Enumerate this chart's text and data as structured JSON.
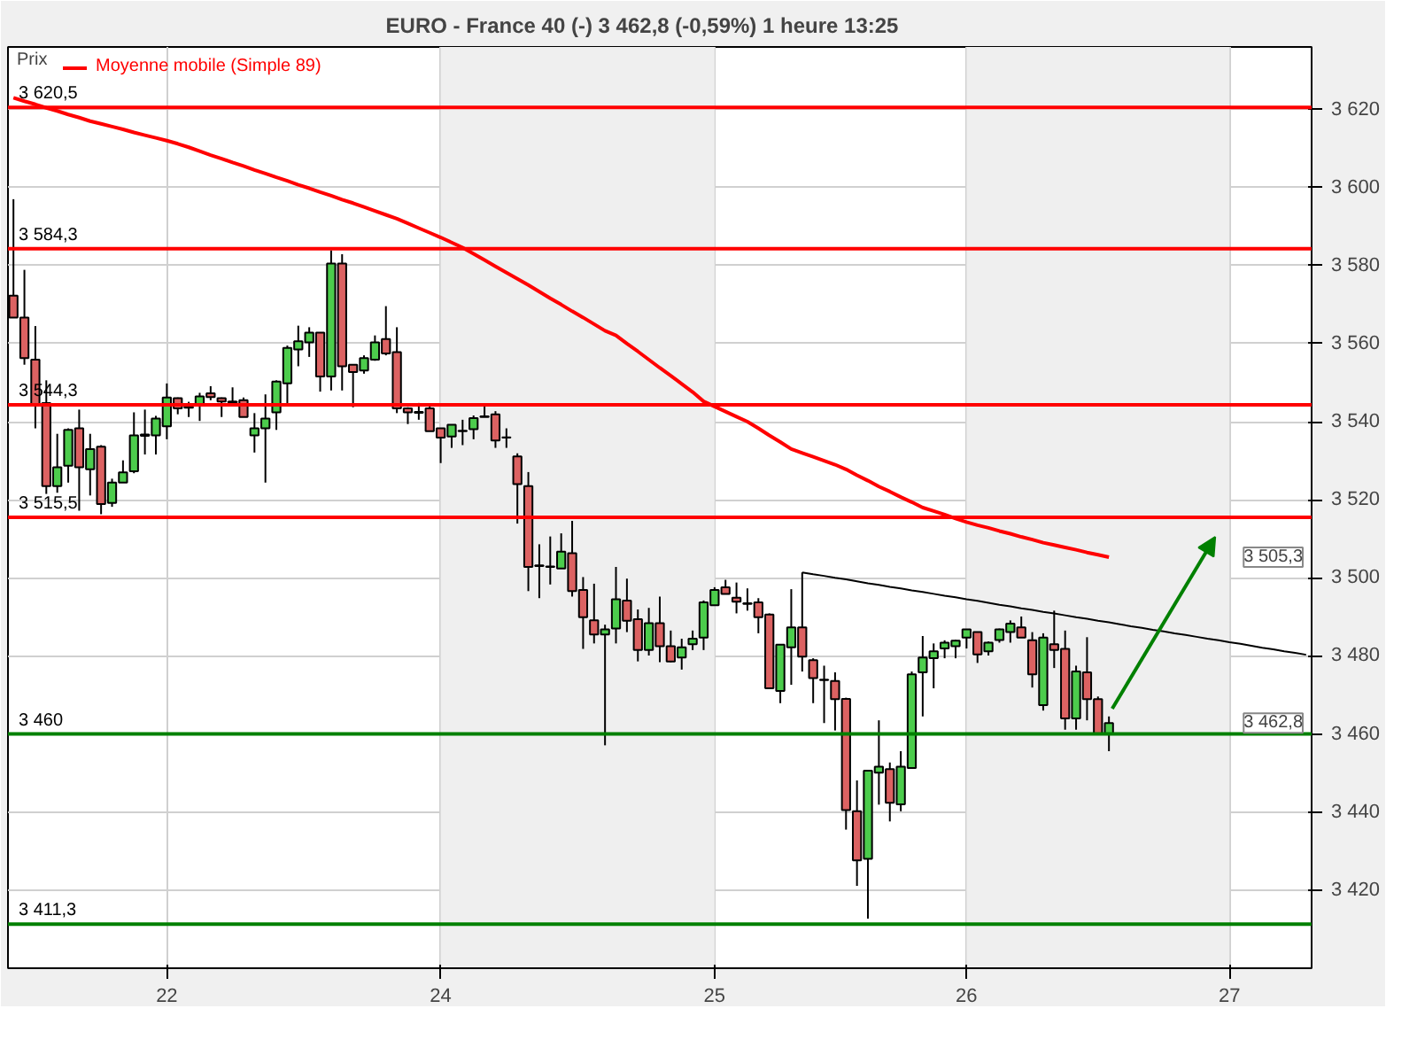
{
  "chart_data": {
    "type": "candlestick",
    "title": "EURO - France 40 (-)   3 462,8 (-0,59%)    1 heure  13:25",
    "categories": [
      null,
      null,
      null,
      null,
      null,
      null,
      null,
      null,
      null,
      null,
      null,
      null,
      null,
      null,
      "22",
      null,
      null,
      null,
      null,
      null,
      null,
      null,
      null,
      null,
      null,
      null,
      null,
      null,
      null,
      null,
      null,
      null,
      null,
      null,
      null,
      null,
      null,
      null,
      null,
      "24",
      null,
      null,
      null,
      null,
      null,
      null,
      null,
      null,
      null,
      null,
      null,
      null,
      null,
      null,
      null,
      null,
      null,
      null,
      null,
      null,
      null,
      null,
      null,
      null,
      "25",
      null,
      null,
      null,
      null,
      null,
      null,
      null,
      null,
      null,
      null,
      null,
      null,
      null,
      null,
      null,
      null,
      null,
      null,
      null,
      null,
      null,
      null,
      "26",
      null,
      null,
      null,
      null,
      null,
      null,
      null,
      null,
      null,
      null,
      null,
      null,
      null,
      null,
      null,
      null,
      null,
      null,
      null,
      null,
      null,
      null,
      null,
      "27",
      null,
      null,
      null,
      null,
      null,
      null,
      null
    ],
    "ylabel": "Prix",
    "ohlc": [
      [
        3572.3,
        3597.0,
        3566.7,
        3566.7
      ],
      [
        3566.7,
        3578.9,
        3554.6,
        3556.3
      ],
      [
        3555.9,
        3564.5,
        3538.3,
        3544.2
      ],
      [
        3544.8,
        3550.6,
        3521.5,
        3523.5
      ],
      [
        3523.5,
        3536.9,
        3521.8,
        3528.3
      ],
      [
        3528.7,
        3538.3,
        3524.4,
        3537.9
      ],
      [
        3538.3,
        3543.1,
        3517.2,
        3528.3
      ],
      [
        3527.8,
        3536.9,
        3521.1,
        3533.0
      ],
      [
        3533.6,
        3534.0,
        3516.3,
        3518.9
      ],
      [
        3519.2,
        3525.4,
        3518.2,
        3524.4
      ],
      [
        3524.4,
        3530.1,
        3524.4,
        3527.0
      ],
      [
        3527.3,
        3542.4,
        3526.8,
        3536.5
      ],
      [
        3536.4,
        3543.1,
        3531.6,
        3536.7
      ],
      [
        3536.5,
        3541.5,
        3531.6,
        3540.8
      ],
      [
        3538.8,
        3549.8,
        3535.5,
        3546.2
      ],
      [
        3546.0,
        3546.2,
        3541.9,
        3543.4
      ],
      [
        3543.8,
        3545.1,
        3541.2,
        3543.6
      ],
      [
        3544.1,
        3547.4,
        3540.2,
        3546.5
      ],
      [
        3547.3,
        3549.1,
        3545.5,
        3546.3
      ],
      [
        3546.0,
        3546.2,
        3541.2,
        3545.2
      ],
      [
        3545.2,
        3548.8,
        3544.1,
        3544.9
      ],
      [
        3545.5,
        3546.2,
        3541.2,
        3541.2
      ],
      [
        3536.5,
        3542.2,
        3532.1,
        3538.3
      ],
      [
        3538.3,
        3547.0,
        3524.4,
        3540.8
      ],
      [
        3542.4,
        3550.6,
        3537.9,
        3550.3
      ],
      [
        3549.8,
        3559.5,
        3544.1,
        3558.9
      ],
      [
        3558.5,
        3564.6,
        3554.2,
        3560.6
      ],
      [
        3560.3,
        3564.2,
        3556.6,
        3562.8
      ],
      [
        3562.8,
        3562.8,
        3547.7,
        3551.6
      ],
      [
        3551.6,
        3583.9,
        3548.0,
        3580.5
      ],
      [
        3580.5,
        3582.9,
        3548.0,
        3554.2
      ],
      [
        3554.6,
        3554.6,
        3543.7,
        3552.7
      ],
      [
        3553.1,
        3557.0,
        3552.3,
        3556.3
      ],
      [
        3555.9,
        3562.1,
        3555.6,
        3560.3
      ],
      [
        3561.2,
        3569.6,
        3557.0,
        3557.5
      ],
      [
        3557.8,
        3564.2,
        3542.2,
        3543.4
      ],
      [
        3543.4,
        3543.7,
        3539.4,
        3542.4
      ],
      [
        3542.5,
        3544.8,
        3540.5,
        3542.3
      ],
      [
        3543.4,
        3544.0,
        3537.6,
        3537.6
      ],
      [
        3538.3,
        3538.3,
        3529.4,
        3535.9
      ],
      [
        3536.2,
        3539.3,
        3533.3,
        3539.2
      ],
      [
        3537.6,
        3540.5,
        3534.0,
        3537.7
      ],
      [
        3538.1,
        3541.6,
        3535.5,
        3540.9
      ],
      [
        3541.2,
        3544.1,
        3541.2,
        3541.4
      ],
      [
        3541.9,
        3542.7,
        3533.3,
        3535.2
      ],
      [
        3536.0,
        3538.3,
        3533.3,
        3535.9
      ],
      [
        3531.1,
        3531.9,
        3513.9,
        3524.0
      ],
      [
        3523.5,
        3527.1,
        3496.6,
        3502.8
      ],
      [
        3503.2,
        3508.6,
        3494.8,
        3503.0
      ],
      [
        3502.9,
        3510.6,
        3498.3,
        3502.8
      ],
      [
        3502.4,
        3511.4,
        3502.4,
        3506.7
      ],
      [
        3506.3,
        3514.6,
        3495.2,
        3496.6
      ],
      [
        3496.9,
        3500.2,
        3481.8,
        3489.9
      ],
      [
        3489.1,
        3498.5,
        3483.2,
        3485.5
      ],
      [
        3485.5,
        3488.0,
        3457.1,
        3486.8
      ],
      [
        3487.0,
        3502.8,
        3483.2,
        3494.5
      ],
      [
        3494.2,
        3499.8,
        3486.1,
        3489.0
      ],
      [
        3489.4,
        3491.9,
        3478.6,
        3481.5
      ],
      [
        3481.5,
        3492.3,
        3480.1,
        3488.4
      ],
      [
        3488.4,
        3495.2,
        3478.4,
        3482.5
      ],
      [
        3482.5,
        3486.5,
        3478.4,
        3478.6
      ],
      [
        3479.6,
        3484.4,
        3476.5,
        3482.2
      ],
      [
        3483.0,
        3486.5,
        3481.5,
        3484.4
      ],
      [
        3484.7,
        3494.2,
        3481.5,
        3493.7
      ],
      [
        3493.0,
        3497.6,
        3493.0,
        3496.9
      ],
      [
        3497.6,
        3499.5,
        3495.9,
        3495.9
      ],
      [
        3494.9,
        3498.8,
        3490.9,
        3493.9
      ],
      [
        3493.5,
        3497.3,
        3491.6,
        3493.3
      ],
      [
        3493.7,
        3494.8,
        3485.8,
        3489.9
      ],
      [
        3490.6,
        3490.9,
        3471.7,
        3471.7
      ],
      [
        3471.0,
        3482.9,
        3467.9,
        3482.9
      ],
      [
        3482.2,
        3497.1,
        3472.6,
        3487.3
      ],
      [
        3487.3,
        3501.4,
        3476.0,
        3479.8
      ],
      [
        3478.9,
        3479.4,
        3467.9,
        3474.3
      ],
      [
        3473.9,
        3477.5,
        3462.8,
        3473.8
      ],
      [
        3473.6,
        3475.8,
        3460.9,
        3468.9
      ],
      [
        3469.0,
        3469.3,
        3435.5,
        3440.5
      ],
      [
        3440.2,
        3448.1,
        3421.1,
        3427.6
      ],
      [
        3428.0,
        3450.6,
        3412.7,
        3450.6
      ],
      [
        3450.1,
        3463.5,
        3441.9,
        3451.6
      ],
      [
        3451.0,
        3452.7,
        3437.6,
        3442.4
      ],
      [
        3442.0,
        3455.6,
        3440.2,
        3451.6
      ],
      [
        3451.3,
        3476.0,
        3451.3,
        3475.3
      ],
      [
        3475.8,
        3485.1,
        3464.5,
        3479.6
      ],
      [
        3479.4,
        3483.2,
        3471.7,
        3481.2
      ],
      [
        3481.9,
        3484.0,
        3479.4,
        3483.4
      ],
      [
        3482.5,
        3484.1,
        3479.4,
        3483.9
      ],
      [
        3484.7,
        3486.8,
        3481.9,
        3486.8
      ],
      [
        3486.1,
        3486.1,
        3478.2,
        3480.4
      ],
      [
        3481.2,
        3483.7,
        3480.1,
        3483.4
      ],
      [
        3484.1,
        3487.0,
        3483.4,
        3486.8
      ],
      [
        3486.1,
        3489.1,
        3483.4,
        3488.3
      ],
      [
        3487.3,
        3490.1,
        3484.7,
        3484.7
      ],
      [
        3484.0,
        3486.1,
        3471.9,
        3475.3
      ],
      [
        3467.4,
        3485.8,
        3466.0,
        3484.7
      ],
      [
        3483.0,
        3491.6,
        3476.9,
        3481.5
      ],
      [
        3481.8,
        3486.5,
        3461.1,
        3464.0
      ],
      [
        3464.0,
        3477.5,
        3461.1,
        3476.0
      ],
      [
        3475.8,
        3484.8,
        3463.5,
        3468.9
      ],
      [
        3468.9,
        3469.6,
        3460.0,
        3460.0
      ],
      [
        3460.0,
        3464.5,
        3455.6,
        3462.8
      ],
      null,
      null,
      null,
      null,
      null,
      null,
      null,
      null,
      null,
      null,
      null,
      null,
      null,
      null,
      null,
      null,
      null,
      null
    ],
    "series": [
      {
        "name": "Moyenne mobile (Simple 89)",
        "type": "line",
        "color": "#ff0000",
        "values": [
          3623,
          3622.1,
          3621.3,
          3620.4,
          3619.6,
          3618.7,
          3617.9,
          3617,
          3616.3,
          3615.6,
          3614.9,
          3614.1,
          3613.4,
          3612.7,
          3612.0,
          3611.2,
          3610.3,
          3609.3,
          3608.3,
          3607.4,
          3606.4,
          3605.5,
          3604.5,
          3603.6,
          3602.6,
          3601.7,
          3600.7,
          3599.8,
          3598.8,
          3597.9,
          3596.9,
          3596.0,
          3595.0,
          3594.0,
          3593.0,
          3592.0,
          3590.8,
          3589.6,
          3588.4,
          3587.2,
          3585.9,
          3584.6,
          3583.0,
          3581.4,
          3579.8,
          3578.2,
          3576.6,
          3575.0,
          3573.3,
          3571.6,
          3570.0,
          3568.3,
          3566.7,
          3565.0,
          3563.3,
          3562.1,
          3560.0,
          3558.0,
          3555.9,
          3553.8,
          3551.8,
          3549.7,
          3547.6,
          3545.2,
          3543.9,
          3542.6,
          3541.3,
          3540.0,
          3538.3,
          3536.5,
          3534.8,
          3533.0,
          3532,
          3531,
          3530,
          3529,
          3527.8,
          3526.3,
          3524.9,
          3523.4,
          3522.1,
          3520.7,
          3519.4,
          3518.0,
          3517.1,
          3516.2,
          3515.2,
          3514.3,
          3513.5,
          3512.8,
          3512.0,
          3511.3,
          3510.5,
          3509.8,
          3509.0,
          3508.4,
          3507.8,
          3507.2,
          3506.5,
          3505.9,
          3505.3,
          null,
          null,
          null,
          null,
          null,
          null,
          null,
          null,
          null,
          null,
          null,
          null,
          null,
          null,
          null,
          null,
          null,
          null
        ]
      },
      {
        "type": "line",
        "color": "#000000",
        "values": [
          null,
          null,
          null,
          null,
          null,
          null,
          null,
          null,
          null,
          null,
          null,
          null,
          null,
          null,
          null,
          null,
          null,
          null,
          null,
          null,
          null,
          null,
          null,
          null,
          null,
          null,
          null,
          null,
          null,
          null,
          null,
          null,
          null,
          null,
          null,
          null,
          null,
          null,
          null,
          null,
          null,
          null,
          null,
          null,
          null,
          null,
          null,
          null,
          null,
          null,
          null,
          null,
          null,
          null,
          null,
          null,
          null,
          null,
          null,
          null,
          null,
          null,
          null,
          null,
          null,
          null,
          null,
          null,
          null,
          null,
          null,
          null,
          3501.4,
          3500.9,
          3500.5,
          3500.0,
          3499.6,
          3499.1,
          3498.6,
          3498.2,
          3497.7,
          3497.3,
          3496.8,
          3496.4,
          3495.9,
          3495.4,
          3495.0,
          3494.5,
          3494.1,
          3493.6,
          3493.1,
          3492.7,
          3492.2,
          3491.8,
          3491.3,
          3490.9,
          3490.4,
          3489.9,
          3489.5,
          3489.0,
          3488.6,
          3488.1,
          3487.6,
          3487.2,
          3486.7,
          3486.3,
          3485.8,
          3485.4,
          3484.9,
          3484.4,
          3484.0,
          3483.5,
          3483.1,
          3482.6,
          3482.1,
          3481.7,
          3481.2,
          3480.8,
          3480.3
        ]
      }
    ],
    "ylim": [
      3400,
      3636
    ],
    "yticks": [
      {
        "value": 3420,
        "label": "3 420"
      },
      {
        "value": 3440,
        "label": "3 440"
      },
      {
        "value": 3460,
        "label": "3 460"
      },
      {
        "value": 3480,
        "label": "3 480"
      },
      {
        "value": 3500,
        "label": "3 500"
      },
      {
        "value": 3520,
        "label": "3 520"
      },
      {
        "value": 3540,
        "label": "3 540"
      },
      {
        "value": 3560,
        "label": "3 560"
      },
      {
        "value": 3580,
        "label": "3 580"
      },
      {
        "value": 3600,
        "label": "3 600"
      },
      {
        "value": 3620,
        "label": "3 620"
      }
    ],
    "ref_lines": [
      {
        "axis": "y",
        "value": 3620.5,
        "label": "3 620,5",
        "color": "#ff0000"
      },
      {
        "axis": "y",
        "value": 3584.3,
        "label": "3 584,3",
        "color": "#ff0000"
      },
      {
        "axis": "y",
        "value": 3544.3,
        "label": "3 544,3",
        "color": "#ff0000"
      },
      {
        "axis": "y",
        "value": 3515.5,
        "label": "3 515,5",
        "color": "#ff0000"
      },
      {
        "axis": "y",
        "value": 3460,
        "label": "3 460",
        "color": "#008000"
      },
      {
        "axis": "y",
        "value": 3411.3,
        "label": "3 411,3",
        "color": "#008000"
      }
    ],
    "bands": [
      {
        "axis": "x",
        "from": "24",
        "to": "25",
        "color": "#efefef"
      },
      {
        "axis": "x",
        "from": "26",
        "to": "27",
        "color": "#efefef"
      }
    ],
    "annotations": [
      {
        "text": "3 505,3",
        "y": 3505.3
      },
      {
        "text": "3 462,8",
        "y": 3462.8
      }
    ],
    "grid": true,
    "legend": "top left"
  }
}
